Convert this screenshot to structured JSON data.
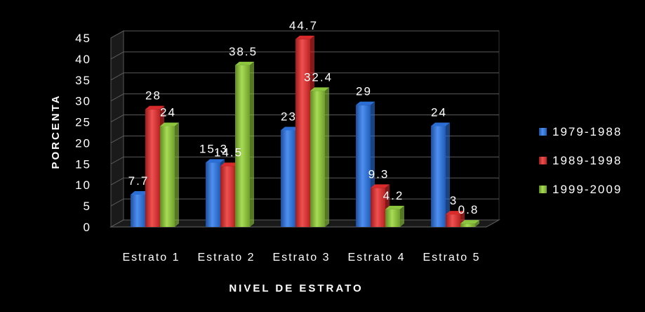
{
  "chart_data": {
    "type": "bar",
    "title": "",
    "xlabel": "NIVEL DE ESTRATO",
    "ylabel": "PORCENTA",
    "categories": [
      "Estrato 1",
      "Estrato 2",
      "Estrato 3",
      "Estrato 4",
      "Estrato 5"
    ],
    "series": [
      {
        "name": "1979-1988",
        "values": [
          7.7,
          15.3,
          23,
          29,
          24
        ],
        "labels": [
          "7.7",
          "15.3",
          "23",
          "29",
          "24"
        ],
        "color": "#2b6fd6"
      },
      {
        "name": "1989-1998",
        "values": [
          28,
          14.5,
          44.7,
          9.3,
          3
        ],
        "labels": [
          "28",
          "14.5",
          "44.7",
          "9.3",
          "3"
        ],
        "color": "#d92b2b"
      },
      {
        "name": "1999-2009",
        "values": [
          24,
          38.5,
          32.4,
          4.2,
          0.8
        ],
        "labels": [
          "24",
          "38.5",
          "32.4",
          "4.2",
          "0.8"
        ],
        "color": "#8cc63f"
      }
    ],
    "ylim": [
      0,
      45
    ],
    "yticks": [
      0,
      5,
      10,
      15,
      20,
      25,
      30,
      35,
      40,
      45
    ],
    "grid": true,
    "legend_position": "right",
    "background": "#000000"
  }
}
